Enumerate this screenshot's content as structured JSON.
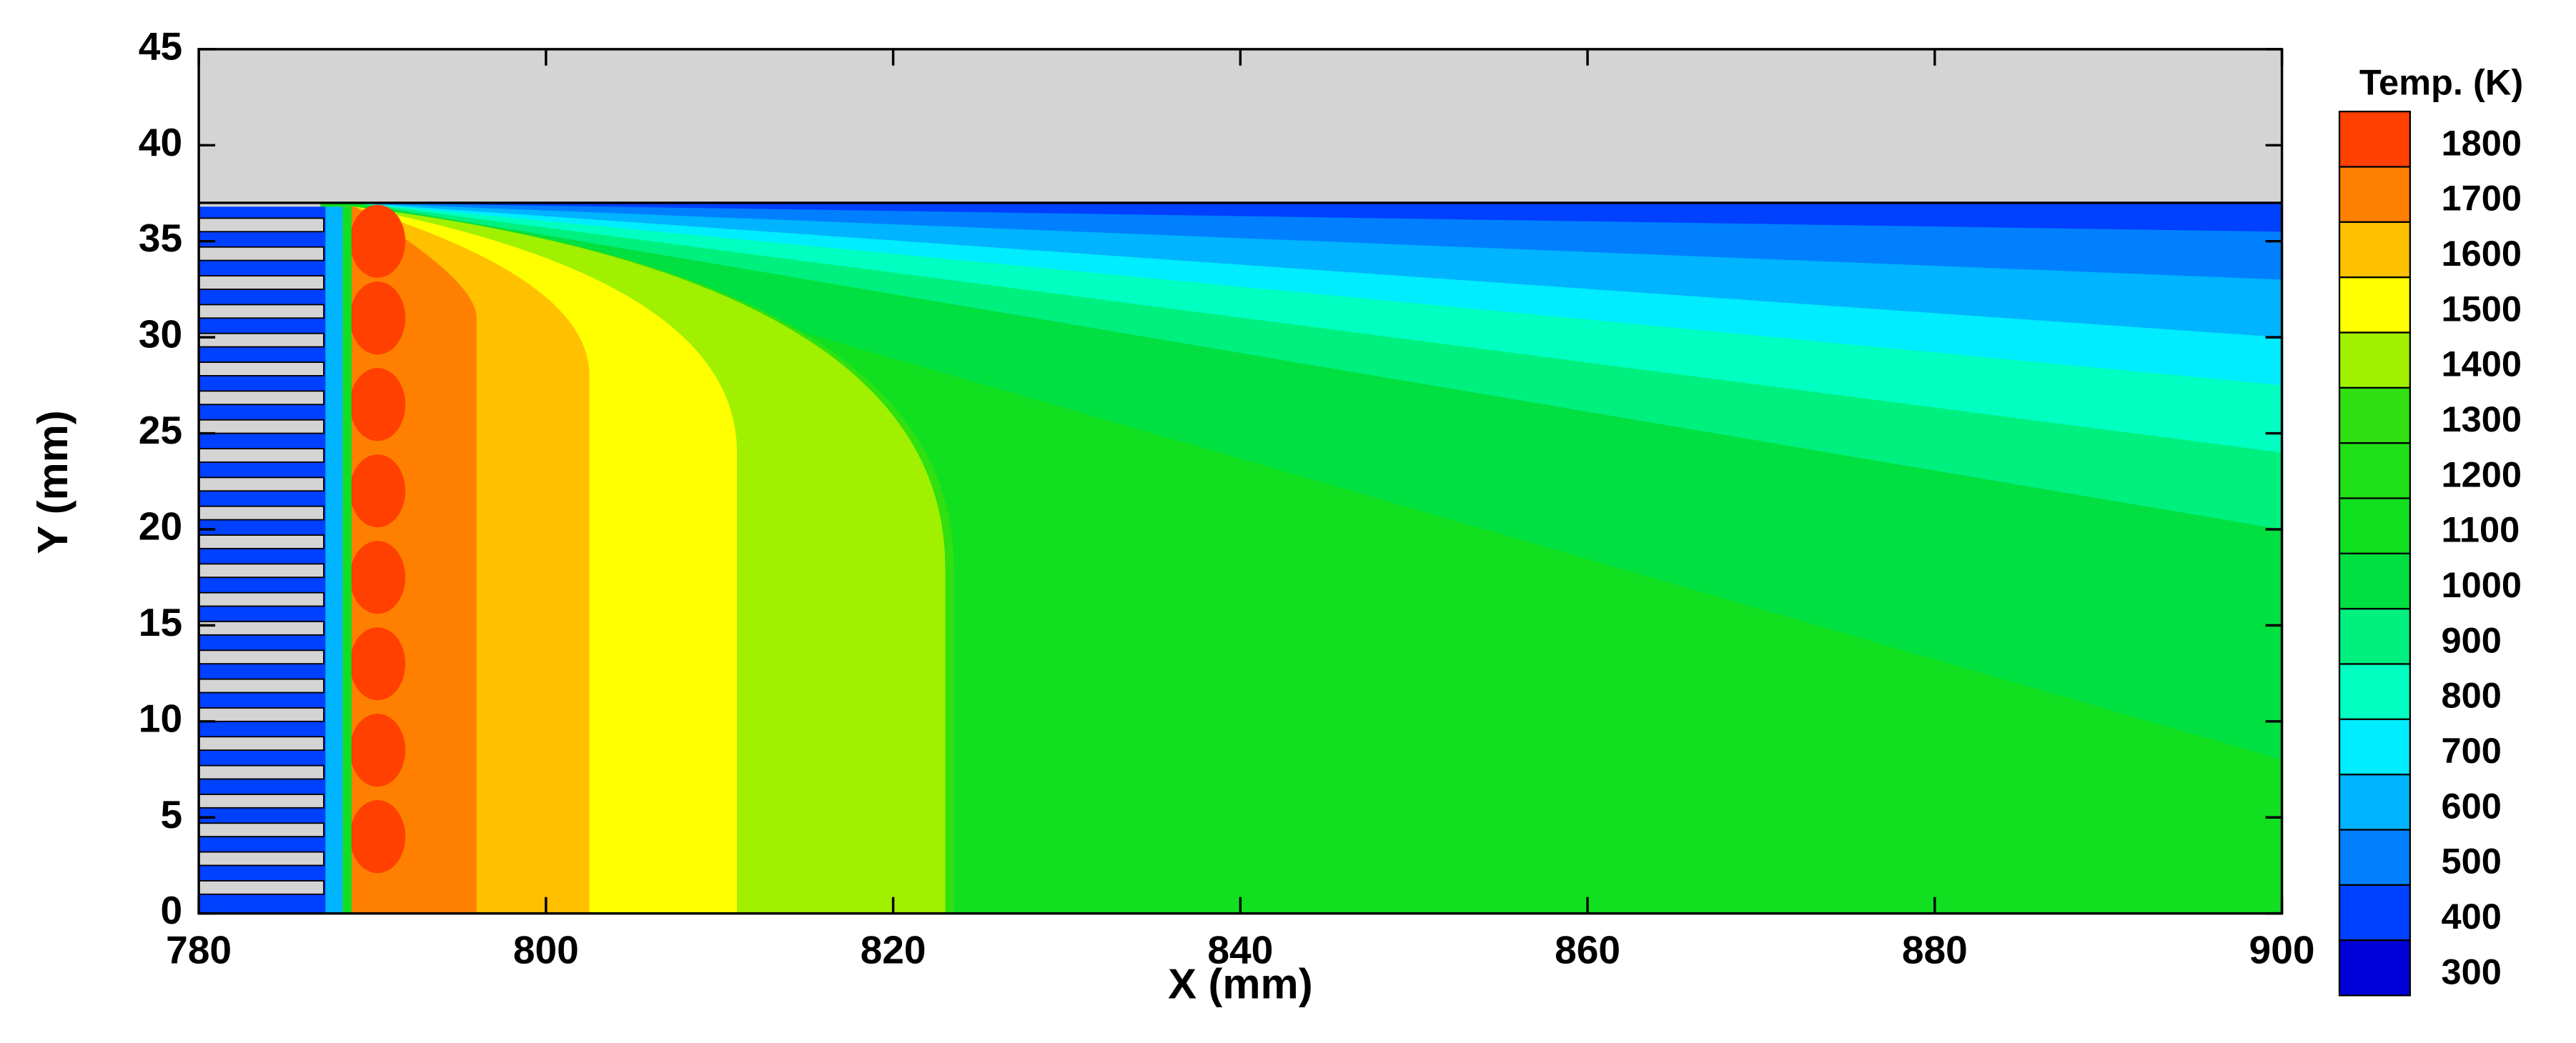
{
  "chart_data": {
    "type": "contour",
    "xlabel": "X (mm)",
    "ylabel": "Y (mm)",
    "xlim": [
      780,
      900
    ],
    "xticks": [
      780,
      800,
      820,
      840,
      860,
      880,
      900
    ],
    "ylim": [
      0,
      45
    ],
    "yticks": [
      0,
      5,
      10,
      15,
      20,
      25,
      30,
      35,
      40,
      45
    ],
    "colorbar": {
      "title": "Temp. (K)",
      "levels": [
        300,
        400,
        500,
        600,
        700,
        800,
        900,
        1000,
        1100,
        1200,
        1300,
        1400,
        1500,
        1600,
        1700,
        1800
      ],
      "colors": [
        "#0000d8",
        "#0040ff",
        "#0080ff",
        "#00b4ff",
        "#00ecff",
        "#00ffc0",
        "#00f080",
        "#00e040",
        "#10e020",
        "#20e018",
        "#30e010",
        "#a0f000",
        "#ffff00",
        "#ffc000",
        "#ff8000",
        "#ff4000"
      ]
    }
  }
}
